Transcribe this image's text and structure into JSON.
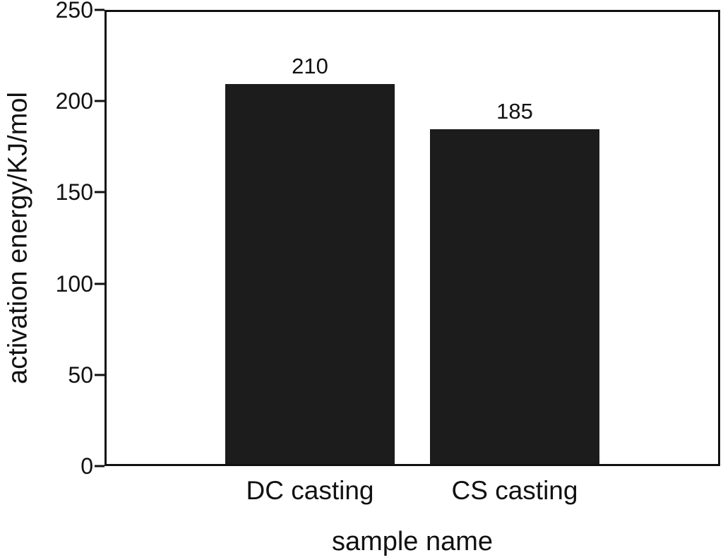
{
  "chart_data": {
    "type": "bar",
    "title": "",
    "categories": [
      "DC casting",
      "CS casting"
    ],
    "values": [
      210,
      185
    ],
    "xlabel": "sample name",
    "ylabel": "activation energy/KJ/mol",
    "ylim": [
      0,
      250
    ],
    "yticks": [
      0,
      50,
      100,
      150,
      200,
      250
    ],
    "grid": false,
    "legend": "none",
    "bar_color": "#1c1c1c",
    "axis_color": "#111111"
  }
}
